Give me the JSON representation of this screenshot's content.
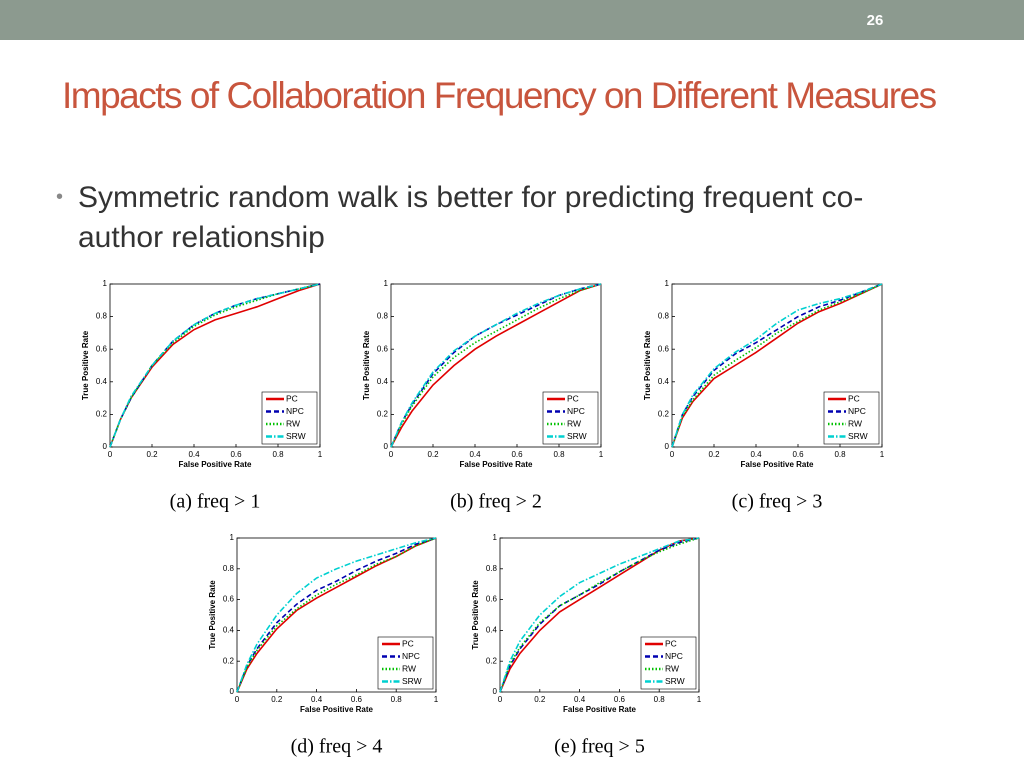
{
  "slide_number": "26",
  "title": "Impacts of Collaboration Frequency on Different Measures",
  "bullet": "Symmetric random walk is better for predicting frequent co-author relationship",
  "chart_data": [
    {
      "type": "line",
      "caption": "(a) freq > 1",
      "xlabel": "False Positive Rate",
      "ylabel": "True Positive Rate",
      "xlim": [
        0,
        1
      ],
      "ylim": [
        0,
        1
      ],
      "xticks": [
        0,
        0.2,
        0.4,
        0.6,
        0.8,
        1
      ],
      "yticks": [
        0,
        0.2,
        0.4,
        0.6,
        0.8,
        1
      ],
      "legend": "lower right",
      "x": [
        0,
        0.05,
        0.1,
        0.2,
        0.3,
        0.4,
        0.5,
        0.6,
        0.7,
        0.8,
        0.9,
        1
      ],
      "series": [
        {
          "name": "PC",
          "color": "#e00000",
          "linestyle": "solid",
          "values": [
            0,
            0.17,
            0.3,
            0.49,
            0.63,
            0.72,
            0.78,
            0.82,
            0.86,
            0.91,
            0.96,
            1
          ]
        },
        {
          "name": "NPC",
          "color": "#0000b0",
          "linestyle": "dashed",
          "values": [
            0,
            0.17,
            0.3,
            0.5,
            0.65,
            0.75,
            0.82,
            0.87,
            0.91,
            0.94,
            0.97,
            1
          ]
        },
        {
          "name": "RW",
          "color": "#00c000",
          "linestyle": "dotted",
          "values": [
            0,
            0.17,
            0.3,
            0.5,
            0.64,
            0.74,
            0.81,
            0.86,
            0.9,
            0.94,
            0.97,
            1
          ]
        },
        {
          "name": "SRW",
          "color": "#00d0d0",
          "linestyle": "dashdot",
          "values": [
            0,
            0.17,
            0.31,
            0.5,
            0.65,
            0.75,
            0.82,
            0.87,
            0.91,
            0.94,
            0.97,
            1
          ]
        }
      ]
    },
    {
      "type": "line",
      "caption": "(b) freq > 2",
      "xlabel": "False Positive Rate",
      "ylabel": "True Positive Rate",
      "xlim": [
        0,
        1
      ],
      "ylim": [
        0,
        1
      ],
      "xticks": [
        0,
        0.2,
        0.4,
        0.6,
        0.8,
        1
      ],
      "yticks": [
        0,
        0.2,
        0.4,
        0.6,
        0.8,
        1
      ],
      "legend": "lower right",
      "x": [
        0,
        0.05,
        0.1,
        0.2,
        0.3,
        0.4,
        0.5,
        0.6,
        0.7,
        0.8,
        0.9,
        1
      ],
      "series": [
        {
          "name": "PC",
          "color": "#e00000",
          "linestyle": "solid",
          "values": [
            0,
            0.12,
            0.22,
            0.38,
            0.5,
            0.6,
            0.68,
            0.75,
            0.82,
            0.89,
            0.96,
            1
          ]
        },
        {
          "name": "NPC",
          "color": "#0000b0",
          "linestyle": "dashed",
          "values": [
            0,
            0.15,
            0.26,
            0.45,
            0.58,
            0.68,
            0.75,
            0.81,
            0.87,
            0.93,
            0.97,
            1
          ]
        },
        {
          "name": "RW",
          "color": "#00c000",
          "linestyle": "dotted",
          "values": [
            0,
            0.14,
            0.25,
            0.43,
            0.55,
            0.64,
            0.71,
            0.78,
            0.85,
            0.91,
            0.96,
            1
          ]
        },
        {
          "name": "SRW",
          "color": "#00d0d0",
          "linestyle": "dashdot",
          "values": [
            0,
            0.15,
            0.27,
            0.46,
            0.59,
            0.68,
            0.75,
            0.82,
            0.88,
            0.93,
            0.97,
            1
          ]
        }
      ]
    },
    {
      "type": "line",
      "caption": "(c) freq > 3",
      "xlabel": "False Positive Rate",
      "ylabel": "True Positive Rate",
      "xlim": [
        0,
        1
      ],
      "ylim": [
        0,
        1
      ],
      "xticks": [
        0,
        0.2,
        0.4,
        0.6,
        0.8,
        1
      ],
      "yticks": [
        0,
        0.2,
        0.4,
        0.6,
        0.8,
        1
      ],
      "legend": "lower right",
      "x": [
        0,
        0.05,
        0.1,
        0.2,
        0.3,
        0.4,
        0.5,
        0.6,
        0.7,
        0.8,
        0.9,
        1
      ],
      "series": [
        {
          "name": "PC",
          "color": "#e00000",
          "linestyle": "solid",
          "values": [
            0,
            0.18,
            0.28,
            0.42,
            0.5,
            0.58,
            0.67,
            0.76,
            0.83,
            0.88,
            0.94,
            1
          ]
        },
        {
          "name": "NPC",
          "color": "#0000b0",
          "linestyle": "dashed",
          "values": [
            0,
            0.2,
            0.31,
            0.47,
            0.57,
            0.64,
            0.72,
            0.8,
            0.86,
            0.9,
            0.95,
            1
          ]
        },
        {
          "name": "RW",
          "color": "#00c000",
          "linestyle": "dotted",
          "values": [
            0,
            0.19,
            0.29,
            0.44,
            0.53,
            0.61,
            0.7,
            0.77,
            0.84,
            0.89,
            0.94,
            1
          ]
        },
        {
          "name": "SRW",
          "color": "#00d0d0",
          "linestyle": "dashdot",
          "values": [
            0,
            0.2,
            0.32,
            0.48,
            0.58,
            0.66,
            0.76,
            0.84,
            0.88,
            0.91,
            0.95,
            1
          ]
        }
      ]
    },
    {
      "type": "line",
      "caption": "(d) freq > 4",
      "xlabel": "False Positive Rate",
      "ylabel": "True Positive Rate",
      "xlim": [
        0,
        1
      ],
      "ylim": [
        0,
        1
      ],
      "xticks": [
        0,
        0.2,
        0.4,
        0.6,
        0.8,
        1
      ],
      "yticks": [
        0,
        0.2,
        0.4,
        0.6,
        0.8,
        1
      ],
      "legend": "lower right",
      "x": [
        0,
        0.05,
        0.1,
        0.2,
        0.3,
        0.4,
        0.5,
        0.6,
        0.7,
        0.8,
        0.9,
        1
      ],
      "series": [
        {
          "name": "PC",
          "color": "#e00000",
          "linestyle": "solid",
          "values": [
            0,
            0.15,
            0.25,
            0.41,
            0.53,
            0.61,
            0.68,
            0.75,
            0.82,
            0.88,
            0.95,
            1
          ]
        },
        {
          "name": "NPC",
          "color": "#0000b0",
          "linestyle": "dashed",
          "values": [
            0,
            0.17,
            0.28,
            0.45,
            0.57,
            0.66,
            0.72,
            0.79,
            0.85,
            0.9,
            0.96,
            1
          ]
        },
        {
          "name": "RW",
          "color": "#00c000",
          "linestyle": "dotted",
          "values": [
            0,
            0.16,
            0.27,
            0.43,
            0.54,
            0.63,
            0.7,
            0.76,
            0.83,
            0.88,
            0.95,
            1
          ]
        },
        {
          "name": "SRW",
          "color": "#00d0d0",
          "linestyle": "dashdot",
          "values": [
            0,
            0.18,
            0.31,
            0.5,
            0.64,
            0.74,
            0.8,
            0.85,
            0.89,
            0.93,
            0.97,
            1
          ]
        }
      ]
    },
    {
      "type": "line",
      "caption": "(e) freq > 5",
      "xlabel": "False Positive Rate",
      "ylabel": "True Positive Rate",
      "xlim": [
        0,
        1
      ],
      "ylim": [
        0,
        1
      ],
      "xticks": [
        0,
        0.2,
        0.4,
        0.6,
        0.8,
        1
      ],
      "yticks": [
        0,
        0.2,
        0.4,
        0.6,
        0.8,
        1
      ],
      "legend": "lower right",
      "x": [
        0,
        0.05,
        0.1,
        0.2,
        0.3,
        0.4,
        0.5,
        0.6,
        0.7,
        0.8,
        0.9,
        1
      ],
      "series": [
        {
          "name": "PC",
          "color": "#e00000",
          "linestyle": "solid",
          "values": [
            0,
            0.15,
            0.25,
            0.4,
            0.52,
            0.6,
            0.68,
            0.76,
            0.84,
            0.92,
            0.98,
            1
          ]
        },
        {
          "name": "NPC",
          "color": "#0000b0",
          "linestyle": "dashed",
          "values": [
            0,
            0.17,
            0.28,
            0.44,
            0.56,
            0.63,
            0.7,
            0.78,
            0.85,
            0.92,
            0.97,
            1
          ]
        },
        {
          "name": "RW",
          "color": "#00c000",
          "linestyle": "dotted",
          "values": [
            0,
            0.18,
            0.29,
            0.45,
            0.56,
            0.63,
            0.71,
            0.78,
            0.85,
            0.91,
            0.96,
            1
          ]
        },
        {
          "name": "SRW",
          "color": "#00d0d0",
          "linestyle": "dashdot",
          "values": [
            0,
            0.2,
            0.33,
            0.5,
            0.62,
            0.71,
            0.77,
            0.83,
            0.88,
            0.93,
            0.98,
            1
          ]
        }
      ]
    }
  ]
}
